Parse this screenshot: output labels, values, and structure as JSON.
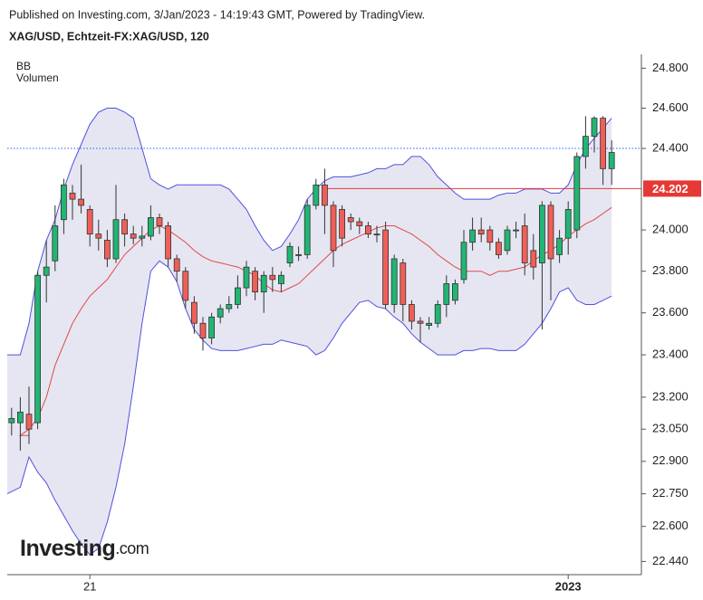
{
  "header": "Published on Investing.com, 3/Jan/2023 - 14:19:43 GMT, Powered by TradingView.",
  "title": "XAG/USD, Echtzeit-FX:XAG/USD, 120",
  "indicators": [
    "BB",
    "Volumen"
  ],
  "logo": {
    "name": "Investing",
    "suffix": ".com"
  },
  "chart_data": {
    "type": "candlestick",
    "log": true,
    "ylim": [
      22.38,
      24.87
    ],
    "yticks": [
      {
        "value": 22.44,
        "label": "22.440"
      },
      {
        "value": 22.6,
        "label": "22.600"
      },
      {
        "value": 22.75,
        "label": "22.750"
      },
      {
        "value": 22.9,
        "label": "22.900"
      },
      {
        "value": 23.05,
        "label": "23.050"
      },
      {
        "value": 23.2,
        "label": "23.200"
      },
      {
        "value": 23.4,
        "label": "23.400"
      },
      {
        "value": 23.6,
        "label": "23.600"
      },
      {
        "value": 23.8,
        "label": "23.800"
      },
      {
        "value": 24.0,
        "label": "24.000"
      },
      {
        "value": 24.4,
        "label": "24.400"
      },
      {
        "value": 24.6,
        "label": "24.600"
      },
      {
        "value": 24.8,
        "label": "24.800"
      }
    ],
    "categories": [
      null,
      null,
      null,
      null,
      null,
      null,
      null,
      null,
      null,
      "21",
      null,
      null,
      null,
      null,
      null,
      null,
      null,
      null,
      null,
      null,
      null,
      null,
      null,
      null,
      null,
      null,
      null,
      null,
      null,
      null,
      null,
      null,
      null,
      null,
      null,
      null,
      null,
      null,
      null,
      null,
      null,
      null,
      null,
      null,
      null,
      null,
      null,
      null,
      null,
      null,
      null,
      null,
      null,
      null,
      null,
      null,
      null,
      null,
      null,
      null,
      null,
      null,
      null,
      null,
      "2023",
      null,
      null,
      null,
      null,
      null
    ],
    "open": [
      23.08,
      23.08,
      23.12,
      23.08,
      23.78,
      23.85,
      24.05,
      24.18,
      24.15,
      24.1,
      23.98,
      23.95,
      23.86,
      24.05,
      23.98,
      23.96,
      23.97,
      24.06,
      24.02,
      23.86,
      23.8,
      23.65,
      23.55,
      23.48,
      23.58,
      23.62,
      23.64,
      23.72,
      23.8,
      23.7,
      23.78,
      23.74,
      23.84,
      23.88,
      23.88,
      24.12,
      24.22,
      24.12,
      24.1,
      24.06,
      24.04,
      24.02,
      23.98,
      24.0,
      23.64,
      23.84,
      23.64,
      23.56,
      23.54,
      23.55,
      23.64,
      23.66,
      23.76,
      23.94,
      24.0,
      24.0,
      23.94,
      23.9,
      24.0,
      24.02,
      23.9,
      23.84,
      24.12,
      23.88,
      23.96,
      24.0,
      24.36,
      24.46,
      24.55,
      24.3
    ],
    "high": [
      23.15,
      23.2,
      23.25,
      23.8,
      23.95,
      24.12,
      24.25,
      24.22,
      24.32,
      24.12,
      24.05,
      24.0,
      24.22,
      24.08,
      24.02,
      24.02,
      24.12,
      24.08,
      24.04,
      23.88,
      23.82,
      23.68,
      23.58,
      23.6,
      23.64,
      23.68,
      23.78,
      23.85,
      23.82,
      23.8,
      23.82,
      23.8,
      23.94,
      23.92,
      24.15,
      24.25,
      24.3,
      24.14,
      24.12,
      24.08,
      24.06,
      24.04,
      24.02,
      24.04,
      23.88,
      23.86,
      23.66,
      23.58,
      23.58,
      23.66,
      23.78,
      23.76,
      24.0,
      24.06,
      24.06,
      24.02,
      23.96,
      24.02,
      24.04,
      24.08,
      23.98,
      24.14,
      24.14,
      24.0,
      24.14,
      24.38,
      24.56,
      24.56,
      24.56,
      24.44
    ],
    "low": [
      23.02,
      22.95,
      22.98,
      23.05,
      23.65,
      23.8,
      23.98,
      24.05,
      24.08,
      23.92,
      23.9,
      23.82,
      23.84,
      23.92,
      23.93,
      23.92,
      23.95,
      23.98,
      23.82,
      23.75,
      23.62,
      23.5,
      23.42,
      23.45,
      23.55,
      23.6,
      23.62,
      23.68,
      23.66,
      23.6,
      23.7,
      23.7,
      23.82,
      23.85,
      23.86,
      24.1,
      23.98,
      23.82,
      23.92,
      24.0,
      23.98,
      23.96,
      23.94,
      23.62,
      23.6,
      23.56,
      23.52,
      23.46,
      23.52,
      23.53,
      23.58,
      23.64,
      23.74,
      23.9,
      23.94,
      23.9,
      23.86,
      23.88,
      23.96,
      23.78,
      23.76,
      23.52,
      23.66,
      23.84,
      23.88,
      23.96,
      24.3,
      24.38,
      24.22,
      24.22
    ],
    "close": [
      23.1,
      23.13,
      23.05,
      23.78,
      23.82,
      24.02,
      24.22,
      24.15,
      24.12,
      23.98,
      23.96,
      23.86,
      24.05,
      23.98,
      23.96,
      23.97,
      24.06,
      24.02,
      23.86,
      23.8,
      23.66,
      23.55,
      23.48,
      23.58,
      23.62,
      23.64,
      23.72,
      23.82,
      23.7,
      23.78,
      23.76,
      23.78,
      23.92,
      23.88,
      24.12,
      24.22,
      24.12,
      23.9,
      23.96,
      24.04,
      24.02,
      23.98,
      23.98,
      23.64,
      23.86,
      23.64,
      23.56,
      23.55,
      23.55,
      23.64,
      23.74,
      23.74,
      23.94,
      24.0,
      23.98,
      23.94,
      23.88,
      24.0,
      24.0,
      23.84,
      23.82,
      24.12,
      23.86,
      23.96,
      24.1,
      24.36,
      24.46,
      24.55,
      24.3,
      24.38
    ],
    "bb_upper": [
      23.4,
      23.4,
      23.55,
      23.8,
      23.95,
      24.05,
      24.2,
      24.32,
      24.42,
      24.52,
      24.58,
      24.6,
      24.6,
      24.58,
      24.55,
      24.4,
      24.25,
      24.22,
      24.2,
      24.22,
      24.22,
      24.22,
      24.22,
      24.22,
      24.22,
      24.2,
      24.15,
      24.1,
      24.02,
      23.95,
      23.9,
      23.92,
      23.98,
      24.05,
      24.15,
      24.2,
      24.24,
      24.26,
      24.26,
      24.26,
      24.27,
      24.28,
      24.3,
      24.3,
      24.32,
      24.32,
      24.36,
      24.36,
      24.32,
      24.26,
      24.22,
      24.18,
      24.15,
      24.15,
      24.15,
      24.15,
      24.17,
      24.18,
      24.18,
      24.2,
      24.2,
      24.2,
      24.18,
      24.18,
      24.22,
      24.32,
      24.4,
      24.45,
      24.5,
      24.55
    ],
    "bb_middle": [
      23.02,
      23.02,
      23.05,
      23.1,
      23.2,
      23.35,
      23.45,
      23.55,
      23.62,
      23.68,
      23.72,
      23.76,
      23.82,
      23.88,
      23.92,
      23.96,
      24.0,
      24.02,
      24.0,
      23.97,
      23.94,
      23.9,
      23.87,
      23.85,
      23.84,
      23.83,
      23.82,
      23.8,
      23.78,
      23.74,
      23.71,
      23.7,
      23.72,
      23.74,
      23.78,
      23.82,
      23.86,
      23.9,
      23.93,
      23.95,
      23.97,
      23.99,
      24.01,
      24.02,
      24.02,
      24.0,
      23.98,
      23.95,
      23.92,
      23.88,
      23.85,
      23.82,
      23.8,
      23.8,
      23.8,
      23.78,
      23.8,
      23.8,
      23.81,
      23.82,
      23.85,
      23.88,
      23.9,
      23.93,
      23.97,
      24.0,
      24.03,
      24.05,
      24.08,
      24.11
    ],
    "bb_lower": [
      22.75,
      22.78,
      22.92,
      22.85,
      22.8,
      22.72,
      22.65,
      22.58,
      22.52,
      22.47,
      22.5,
      22.62,
      22.78,
      22.98,
      23.25,
      23.55,
      23.8,
      23.85,
      23.82,
      23.75,
      23.62,
      23.52,
      23.47,
      23.43,
      23.42,
      23.42,
      23.42,
      23.43,
      23.44,
      23.45,
      23.45,
      23.47,
      23.46,
      23.45,
      23.44,
      23.4,
      23.42,
      23.48,
      23.55,
      23.6,
      23.65,
      23.66,
      23.63,
      23.62,
      23.58,
      23.55,
      23.5,
      23.46,
      23.43,
      23.4,
      23.4,
      23.4,
      23.42,
      23.42,
      23.43,
      23.43,
      23.42,
      23.42,
      23.42,
      23.45,
      23.5,
      23.55,
      23.62,
      23.7,
      23.72,
      23.66,
      23.64,
      23.64,
      23.66,
      23.68
    ],
    "up_color": "#22b573",
    "down_color": "#ef5f58",
    "band_color": "#5050e0",
    "middle_color": "#e04848",
    "band_fill": "#e6e6f2",
    "price_line": 24.202,
    "price_line_color": "#e53935",
    "last_price_line": 24.4,
    "last_price_color": "#2962ff"
  }
}
